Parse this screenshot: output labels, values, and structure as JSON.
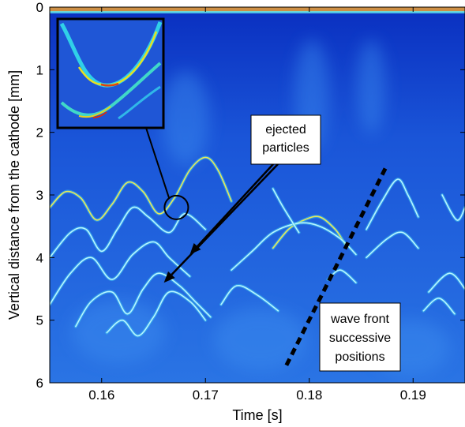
{
  "chart_data": {
    "type": "heatmap",
    "title": "",
    "xlabel": "Time [s]",
    "ylabel": "Vertical distance from the cathode [mm]",
    "xlim": [
      0.155,
      0.195
    ],
    "ylim": [
      6,
      0
    ],
    "xticks": [
      "0.16",
      "0.17",
      "0.18",
      "0.19"
    ],
    "xtick_values": [
      0.16,
      0.17,
      0.18,
      0.19
    ],
    "yticks": [
      "0",
      "1",
      "2",
      "3",
      "4",
      "5",
      "6"
    ],
    "ytick_values": [
      0,
      1,
      2,
      3,
      4,
      5,
      6
    ],
    "colormap": "jet",
    "background_color": "#1a5ad8",
    "annotations": [
      {
        "label": "ejected particles",
        "lines": [
          "ejected",
          "particles"
        ]
      },
      {
        "label": "wave front successive positions",
        "lines": [
          "wave front",
          "successive",
          "positions"
        ]
      }
    ],
    "arrow_targets": [
      {
        "x": 0.1685,
        "y": 3.95
      },
      {
        "x": 0.166,
        "y": 4.4
      }
    ],
    "wave_front_line": {
      "start": {
        "x": 0.1778,
        "y": 5.72
      },
      "end": {
        "x": 0.1875,
        "y": 2.52
      },
      "style": "dashed"
    },
    "zoom_circle": {
      "x": 0.1672,
      "y": 3.2
    },
    "tracks": [
      [
        [
          0.155,
          3.2
        ],
        [
          0.1565,
          2.95
        ],
        [
          0.158,
          3.05
        ],
        [
          0.1595,
          3.4
        ],
        [
          0.161,
          3.15
        ],
        [
          0.1625,
          2.8
        ],
        [
          0.164,
          2.95
        ],
        [
          0.1655,
          3.3
        ],
        [
          0.167,
          3.05
        ],
        [
          0.1685,
          2.6
        ],
        [
          0.17,
          2.4
        ],
        [
          0.1712,
          2.6
        ],
        [
          0.1725,
          3.1
        ]
      ],
      [
        [
          0.155,
          4.0
        ],
        [
          0.157,
          3.6
        ],
        [
          0.1585,
          3.55
        ],
        [
          0.16,
          3.9
        ],
        [
          0.1615,
          3.55
        ],
        [
          0.163,
          3.2
        ],
        [
          0.1645,
          3.35
        ],
        [
          0.1665,
          3.6
        ],
        [
          0.168,
          3.3
        ],
        [
          0.17,
          3.55
        ]
      ],
      [
        [
          0.155,
          4.75
        ],
        [
          0.157,
          4.25
        ],
        [
          0.159,
          4.0
        ],
        [
          0.161,
          4.35
        ],
        [
          0.163,
          3.95
        ],
        [
          0.165,
          3.75
        ],
        [
          0.1665,
          4.0
        ],
        [
          0.1685,
          4.3
        ]
      ],
      [
        [
          0.1575,
          5.1
        ],
        [
          0.159,
          4.7
        ],
        [
          0.161,
          4.55
        ],
        [
          0.1625,
          4.9
        ],
        [
          0.164,
          4.5
        ],
        [
          0.1655,
          4.25
        ],
        [
          0.1675,
          4.45
        ],
        [
          0.169,
          4.7
        ],
        [
          0.1705,
          4.95
        ]
      ],
      [
        [
          0.1605,
          5.2
        ],
        [
          0.162,
          5.0
        ],
        [
          0.1635,
          5.25
        ],
        [
          0.165,
          4.95
        ],
        [
          0.1665,
          4.55
        ],
        [
          0.1685,
          4.7
        ],
        [
          0.17,
          5.0
        ]
      ],
      [
        [
          0.1765,
          3.85
        ],
        [
          0.178,
          3.55
        ],
        [
          0.1795,
          3.4
        ],
        [
          0.181,
          3.35
        ],
        [
          0.1825,
          3.55
        ],
        [
          0.1835,
          3.8
        ]
      ],
      [
        [
          0.1725,
          4.2
        ],
        [
          0.1745,
          3.9
        ],
        [
          0.1765,
          3.6
        ],
        [
          0.179,
          3.45
        ],
        [
          0.181,
          3.5
        ],
        [
          0.183,
          3.7
        ],
        [
          0.1845,
          3.95
        ]
      ],
      [
        [
          0.1765,
          2.9
        ],
        [
          0.1775,
          3.2
        ],
        [
          0.179,
          3.6
        ]
      ],
      [
        [
          0.1855,
          3.55
        ],
        [
          0.187,
          3.1
        ],
        [
          0.1885,
          2.75
        ],
        [
          0.1895,
          3.0
        ],
        [
          0.1905,
          3.35
        ]
      ],
      [
        [
          0.1855,
          4.0
        ],
        [
          0.1875,
          3.7
        ],
        [
          0.189,
          3.6
        ],
        [
          0.1905,
          3.85
        ]
      ],
      [
        [
          0.1915,
          4.55
        ],
        [
          0.1935,
          4.25
        ],
        [
          0.195,
          4.5
        ]
      ],
      [
        [
          0.191,
          4.85
        ],
        [
          0.1925,
          4.65
        ],
        [
          0.194,
          4.9
        ]
      ],
      [
        [
          0.1928,
          3.0
        ],
        [
          0.1942,
          3.4
        ],
        [
          0.195,
          3.2
        ]
      ],
      [
        [
          0.1715,
          4.75
        ],
        [
          0.173,
          4.45
        ],
        [
          0.175,
          4.6
        ],
        [
          0.177,
          4.85
        ]
      ],
      [
        [
          0.1818,
          4.35
        ],
        [
          0.183,
          4.2
        ],
        [
          0.1845,
          4.4
        ]
      ]
    ]
  }
}
